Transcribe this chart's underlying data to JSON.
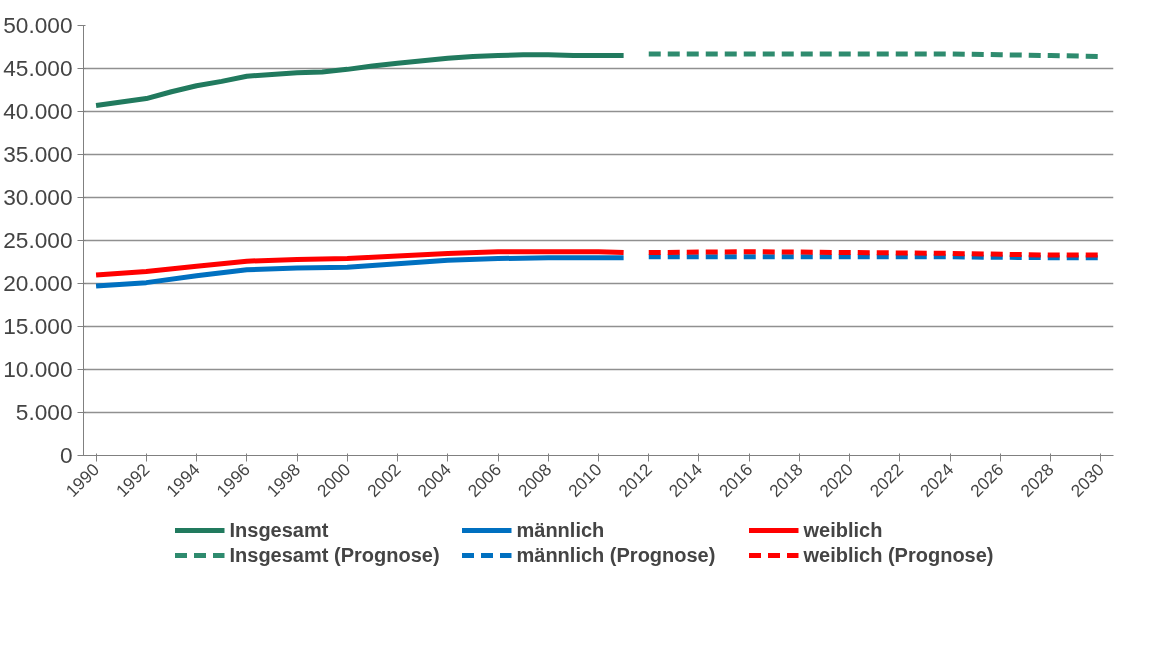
{
  "chart_data": {
    "type": "line",
    "xlim": [
      1989.5,
      2030.5
    ],
    "xticks": [
      1990,
      1992,
      1994,
      1996,
      1998,
      2000,
      2002,
      2004,
      2006,
      2008,
      2010,
      2012,
      2014,
      2016,
      2018,
      2020,
      2022,
      2024,
      2026,
      2028,
      2030
    ],
    "ylim": [
      0,
      50000
    ],
    "yticks": [
      0,
      {
        "value": 5000,
        "label": "5.000"
      },
      {
        "value": 10000,
        "label": "10.000"
      },
      {
        "value": 15000,
        "label": "15.000"
      },
      {
        "value": 20000,
        "label": "20.000"
      },
      {
        "value": 25000,
        "label": "25.000"
      },
      {
        "value": 30000,
        "label": "30.000"
      },
      {
        "value": 35000,
        "label": "35.000"
      },
      {
        "value": 40000,
        "label": "40.000"
      },
      {
        "value": 45000,
        "label": "45.000"
      },
      {
        "value": 50000,
        "label": "50.000"
      }
    ],
    "grid": "y",
    "legend": "bottom",
    "marker": "none",
    "series": [
      {
        "name": "Insgesamt",
        "color": "#217a5e",
        "line_style": "solid",
        "x": [
          1990,
          1991,
          1992,
          1993,
          1994,
          1995,
          1996,
          1997,
          1998,
          1999,
          2000,
          2001,
          2002,
          2003,
          2004,
          2005,
          2006,
          2007,
          2008,
          2009,
          2010,
          2011
        ],
        "values": [
          40700,
          41100,
          41500,
          42300,
          43000,
          43500,
          44100,
          44300,
          44500,
          44600,
          44900,
          45300,
          45600,
          45900,
          46200,
          46400,
          46500,
          46600,
          46600,
          46500,
          46500,
          46500
        ]
      },
      {
        "name": "männlich",
        "color": "#0070c0",
        "line_style": "solid",
        "x": [
          1990,
          1992,
          1994,
          1996,
          1998,
          2000,
          2002,
          2004,
          2006,
          2008,
          2010,
          2011
        ],
        "values": [
          19700,
          20100,
          20900,
          21600,
          21800,
          21900,
          22300,
          22700,
          22900,
          23000,
          23000,
          23000
        ]
      },
      {
        "name": "weiblich",
        "color": "#ff0000",
        "line_style": "solid",
        "x": [
          1990,
          1992,
          1994,
          1996,
          1998,
          2000,
          2002,
          2004,
          2006,
          2008,
          2010,
          2011
        ],
        "values": [
          21000,
          21400,
          22000,
          22600,
          22800,
          22900,
          23200,
          23500,
          23700,
          23700,
          23700,
          23600
        ]
      },
      {
        "name": "Insgesamt (Prognose)",
        "color": "#2e8b6e",
        "line_style": "dashed",
        "x": [
          2012,
          2014,
          2016,
          2018,
          2020,
          2022,
          2024,
          2026,
          2028,
          2030
        ],
        "values": [
          46700,
          46700,
          46700,
          46700,
          46700,
          46700,
          46700,
          46600,
          46500,
          46400
        ]
      },
      {
        "name": "männlich (Prognose)",
        "color": "#0070c0",
        "line_style": "dashed",
        "x": [
          2012,
          2016,
          2020,
          2024,
          2028,
          2030
        ],
        "values": [
          23100,
          23100,
          23100,
          23100,
          23000,
          23000
        ]
      },
      {
        "name": "weiblich (Prognose)",
        "color": "#ff0000",
        "line_style": "dashed",
        "x": [
          2012,
          2016,
          2020,
          2024,
          2028,
          2030
        ],
        "values": [
          23600,
          23700,
          23600,
          23500,
          23300,
          23300
        ]
      }
    ]
  }
}
